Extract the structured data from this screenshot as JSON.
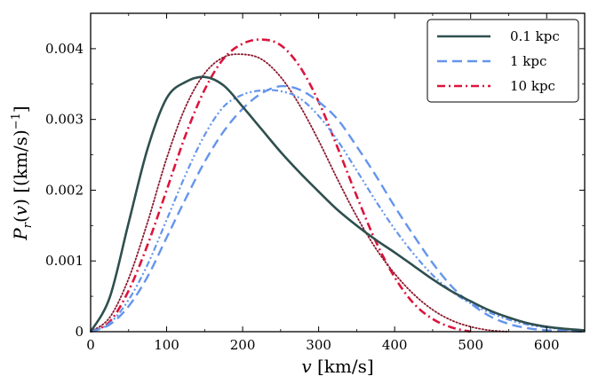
{
  "chart_data": {
    "type": "line",
    "title": "",
    "xlabel": "v [km/s]",
    "ylabel": "P_r(v) [(km/s)^-1]",
    "xlim": [
      0,
      650
    ],
    "ylim": [
      0,
      0.0045
    ],
    "xticks": [
      0,
      100,
      200,
      300,
      400,
      500,
      600
    ],
    "xtick_labels": [
      "0",
      "100",
      "200",
      "300",
      "400",
      "500",
      "600"
    ],
    "yticks": [
      0,
      0.001,
      0.002,
      0.003,
      0.004
    ],
    "ytick_labels": [
      "0",
      "0.001",
      "0.002",
      "0.003",
      "0.004"
    ],
    "grid": false,
    "legend_position": "top-right",
    "series": [
      {
        "name": "0.1 kpc",
        "in_legend": true,
        "color": "#2f4f4f",
        "style": "solid",
        "x": [
          0,
          25,
          50,
          75,
          100,
          125,
          150,
          175,
          200,
          225,
          250,
          275,
          300,
          325,
          350,
          375,
          400,
          425,
          450,
          475,
          500,
          525,
          550,
          575,
          600,
          625,
          650
        ],
        "y": [
          0,
          0.00048,
          0.00154,
          0.00259,
          0.0033,
          0.00353,
          0.0036,
          0.00348,
          0.00318,
          0.00286,
          0.00254,
          0.00225,
          0.00198,
          0.00172,
          0.0015,
          0.0013,
          0.00112,
          0.00093,
          0.00074,
          0.00057,
          0.00043,
          0.0003,
          0.0002,
          0.00012,
          7e-05,
          4e-05,
          2e-05
        ]
      },
      {
        "name": "1 kpc",
        "in_legend": true,
        "color": "#6495ed",
        "style": "dashed",
        "x": [
          0,
          25,
          50,
          75,
          100,
          125,
          150,
          175,
          200,
          225,
          250,
          275,
          300,
          325,
          350,
          375,
          400,
          425,
          450,
          475,
          500,
          525,
          550,
          575,
          600,
          625,
          650
        ],
        "y": [
          0,
          0.0001,
          0.00036,
          0.00078,
          0.00133,
          0.00188,
          0.0024,
          0.00283,
          0.00315,
          0.00337,
          0.00347,
          0.00342,
          0.00325,
          0.003,
          0.00262,
          0.00221,
          0.00177,
          0.00136,
          0.00097,
          0.00064,
          0.0004,
          0.00022,
          0.00011,
          5e-05,
          2e-05,
          1e-05,
          0
        ]
      },
      {
        "name": "1 kpc (dash-dot-dot)",
        "in_legend": false,
        "color": "#6495ed",
        "style": "dashdotdot",
        "x": [
          0,
          25,
          50,
          75,
          100,
          125,
          150,
          175,
          200,
          225,
          250,
          275,
          300,
          325,
          350,
          375,
          400,
          425,
          450,
          475,
          500,
          525,
          550,
          575,
          600,
          625,
          650
        ],
        "y": [
          0,
          0.00012,
          0.00045,
          0.00095,
          0.00158,
          0.00222,
          0.00278,
          0.00318,
          0.00335,
          0.00341,
          0.0034,
          0.0033,
          0.00305,
          0.0027,
          0.00228,
          0.00185,
          0.00145,
          0.0011,
          0.0008,
          0.00057,
          0.0004,
          0.00027,
          0.00017,
          0.0001,
          6e-05,
          3e-05,
          1e-05
        ]
      },
      {
        "name": "10 kpc",
        "in_legend": true,
        "color": "#dc143c",
        "style": "dashdot",
        "x": [
          0,
          25,
          50,
          75,
          100,
          125,
          150,
          175,
          200,
          225,
          250,
          275,
          300,
          325,
          350,
          375,
          400,
          425,
          450,
          475,
          500
        ],
        "y": [
          0,
          0.00014,
          0.00058,
          0.00123,
          0.002,
          0.00278,
          0.00342,
          0.00386,
          0.00407,
          0.00413,
          0.00405,
          0.00375,
          0.00325,
          0.0026,
          0.00192,
          0.00128,
          0.00077,
          0.0004,
          0.00018,
          6e-05,
          0
        ]
      },
      {
        "name": "10 kpc (dotted)",
        "in_legend": false,
        "color": "#8b1a2e",
        "style": "dotted",
        "x": [
          0,
          25,
          50,
          75,
          100,
          125,
          150,
          175,
          200,
          225,
          250,
          275,
          300,
          325,
          350,
          375,
          400,
          425,
          450,
          475,
          500,
          525,
          550
        ],
        "y": [
          0,
          0.0002,
          0.00075,
          0.00155,
          0.00245,
          0.00318,
          0.00365,
          0.00388,
          0.00392,
          0.00385,
          0.0036,
          0.0032,
          0.0027,
          0.00215,
          0.00163,
          0.00118,
          0.00082,
          0.00053,
          0.00031,
          0.00016,
          7e-05,
          2e-05,
          0
        ]
      }
    ]
  }
}
